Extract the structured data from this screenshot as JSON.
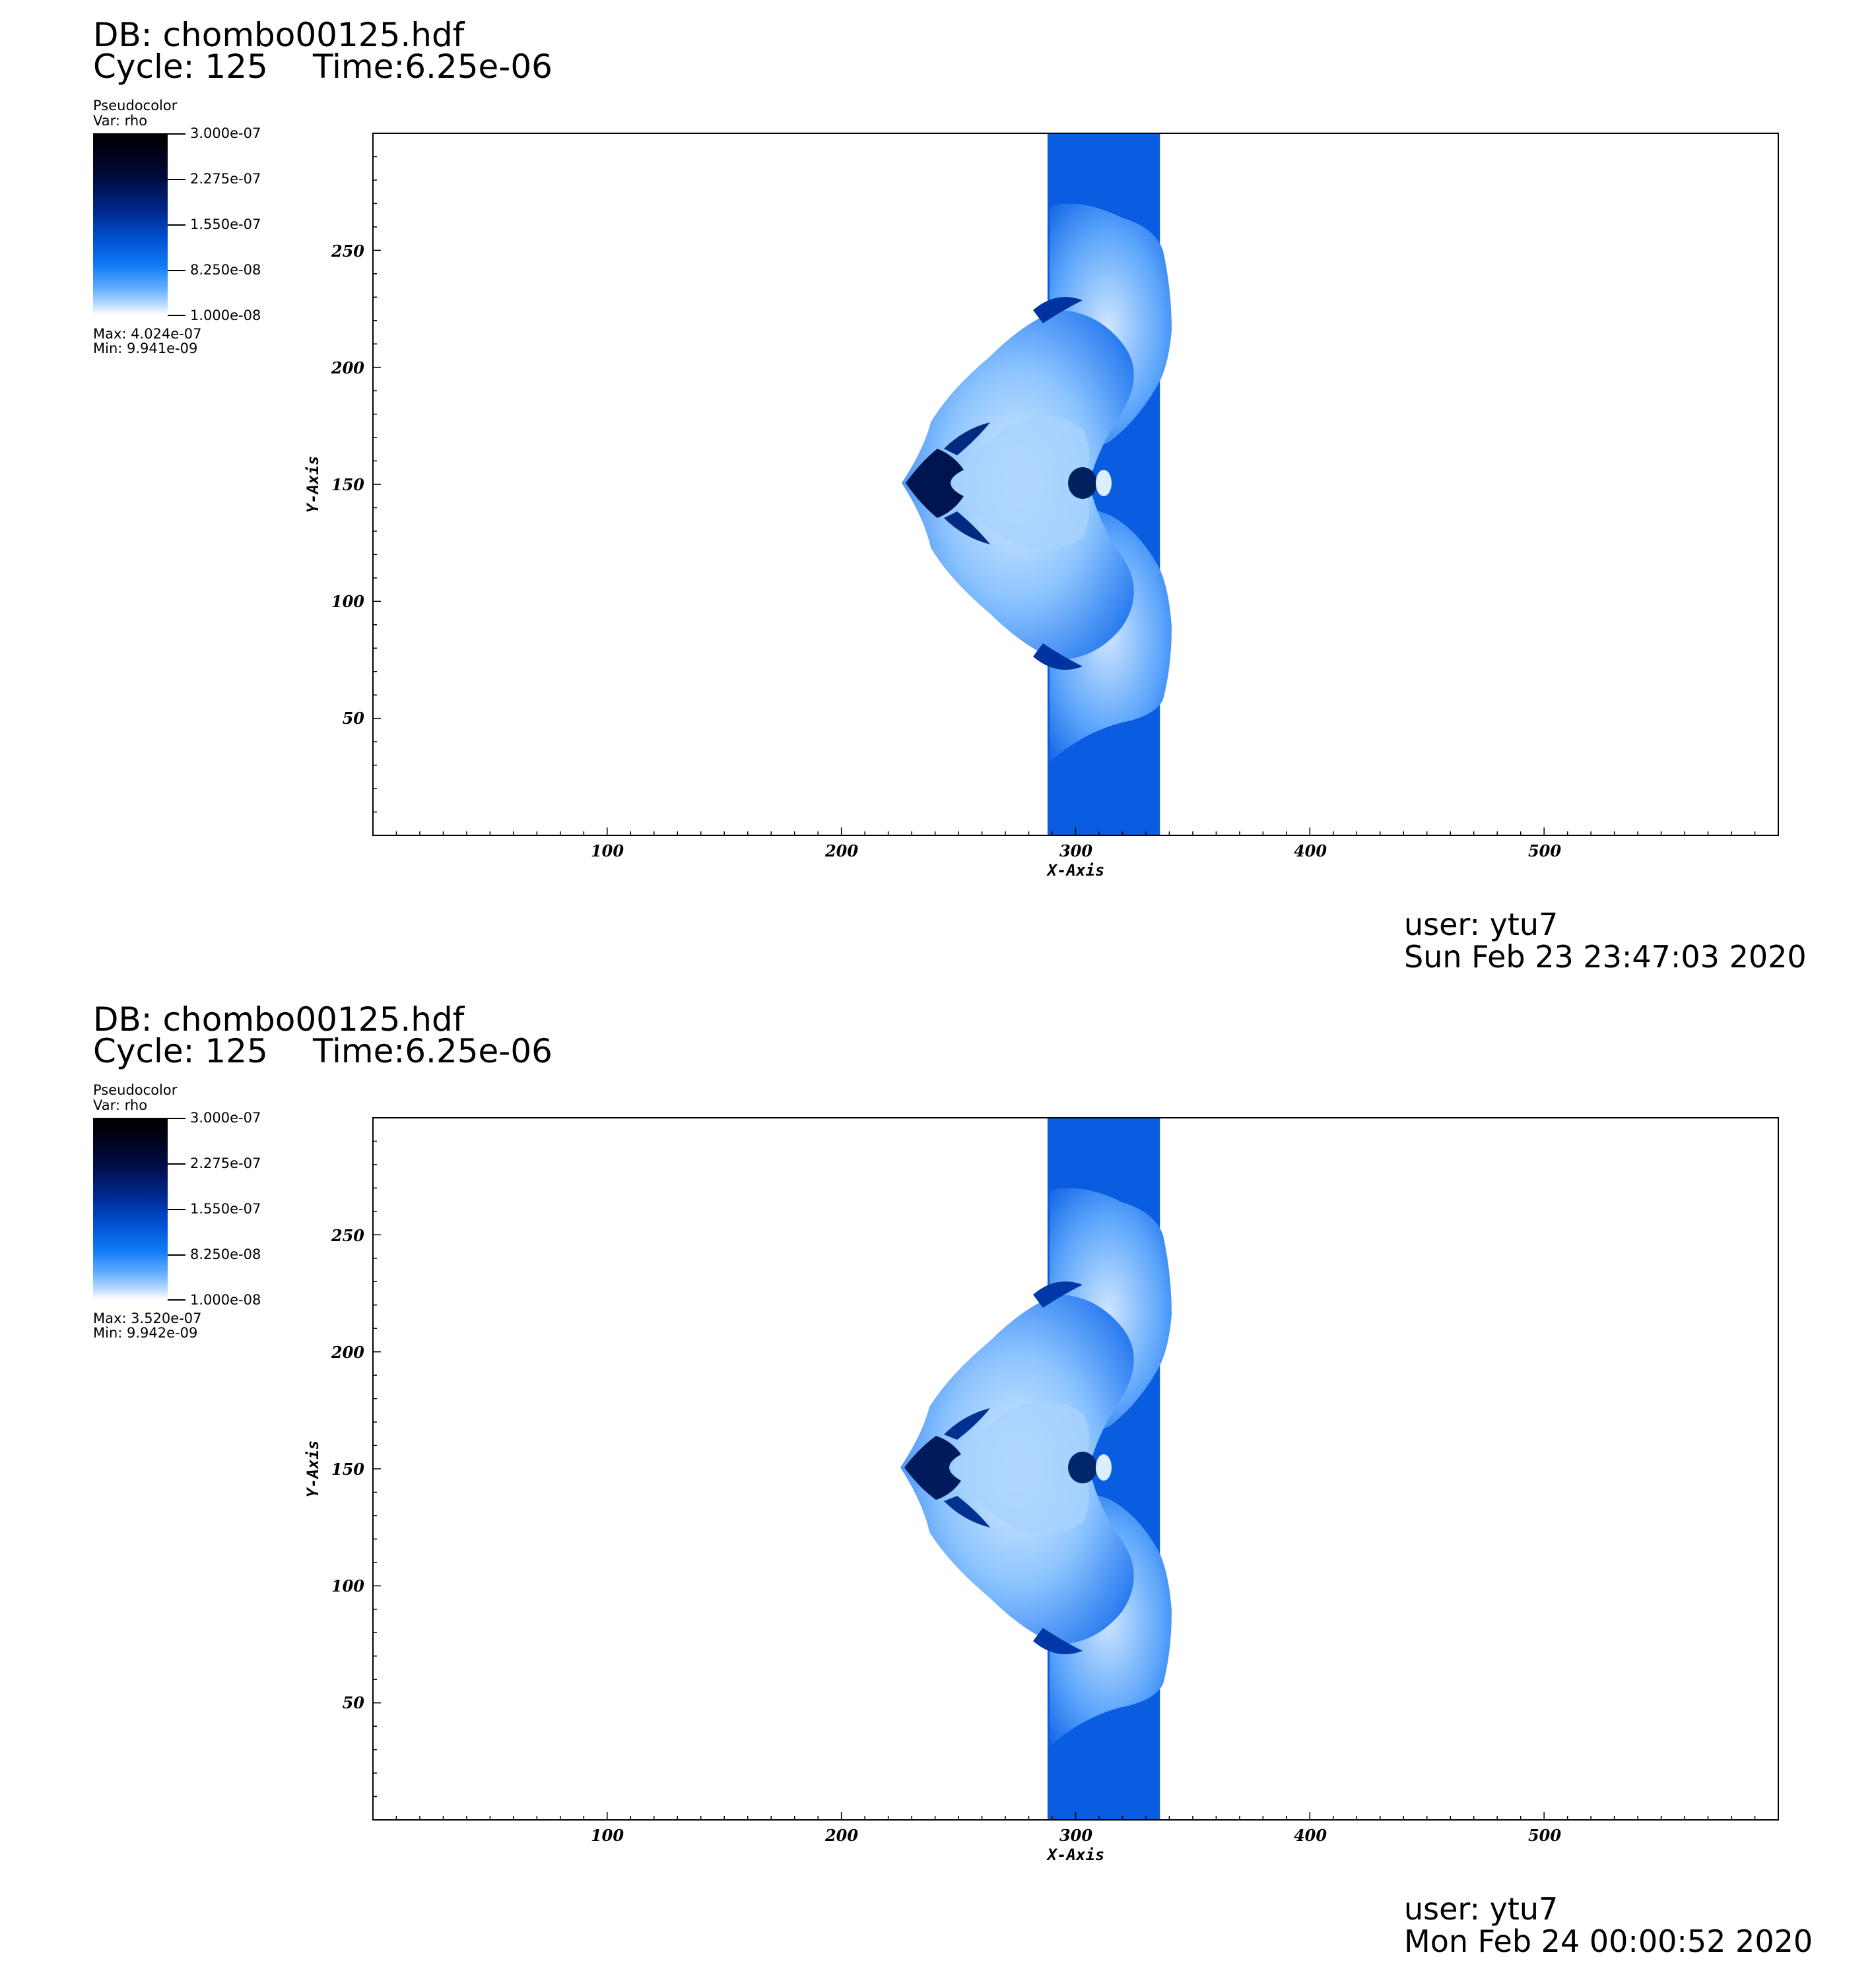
{
  "colors": {
    "background_blue": "#0a5ce0",
    "dark_blue": "#00144f",
    "light_blue": "#d8ebff",
    "frame": "#000000"
  },
  "panels": [
    {
      "db": "DB: chombo00125.hdf",
      "cycle": "Cycle: 125",
      "time": "Time:6.25e-06",
      "legend": {
        "plot_type": "Pseudocolor",
        "var": "Var: rho",
        "ticks": [
          "3.000e-07",
          "2.275e-07",
          "1.550e-07",
          "8.250e-08",
          "1.000e-08"
        ],
        "max": "Max:  4.024e-07",
        "min": "Min:  9.941e-09"
      },
      "user": "user: ytu7",
      "date": "Sun Feb 23 23:47:03 2020"
    },
    {
      "db": "DB: chombo00125.hdf",
      "cycle": "Cycle: 125",
      "time": "Time:6.25e-06",
      "legend": {
        "plot_type": "Pseudocolor",
        "var": "Var: rho",
        "ticks": [
          "3.000e-07",
          "2.275e-07",
          "1.550e-07",
          "8.250e-08",
          "1.000e-08"
        ],
        "max": "Max:  3.520e-07",
        "min": "Min:  9.942e-09"
      },
      "user": "user: ytu7",
      "date": "Mon Feb 24 00:00:52 2020"
    }
  ],
  "chart_data": [
    {
      "type": "heatmap",
      "variable": "rho",
      "xlabel": "X-Axis",
      "ylabel": "Y-Axis",
      "xlim": [
        0,
        600
      ],
      "ylim": [
        0,
        300
      ],
      "x_ticks": [
        "100",
        "200",
        "300",
        "400",
        "500"
      ],
      "y_ticks": [
        "50",
        "100",
        "150",
        "200",
        "250"
      ],
      "colorbar_range": [
        1e-08,
        3e-07
      ],
      "max": 4.024e-07,
      "min": 9.941e-09,
      "band_x_range": [
        288,
        336
      ]
    },
    {
      "type": "heatmap",
      "variable": "rho",
      "xlabel": "X-Axis",
      "ylabel": "Y-Axis",
      "xlim": [
        0,
        600
      ],
      "ylim": [
        0,
        300
      ],
      "x_ticks": [
        "100",
        "200",
        "300",
        "400",
        "500"
      ],
      "y_ticks": [
        "50",
        "100",
        "150",
        "200",
        "250"
      ],
      "colorbar_range": [
        1e-08,
        3e-07
      ],
      "max": 3.52e-07,
      "min": 9.942e-09,
      "band_x_range": [
        288,
        336
      ]
    }
  ]
}
